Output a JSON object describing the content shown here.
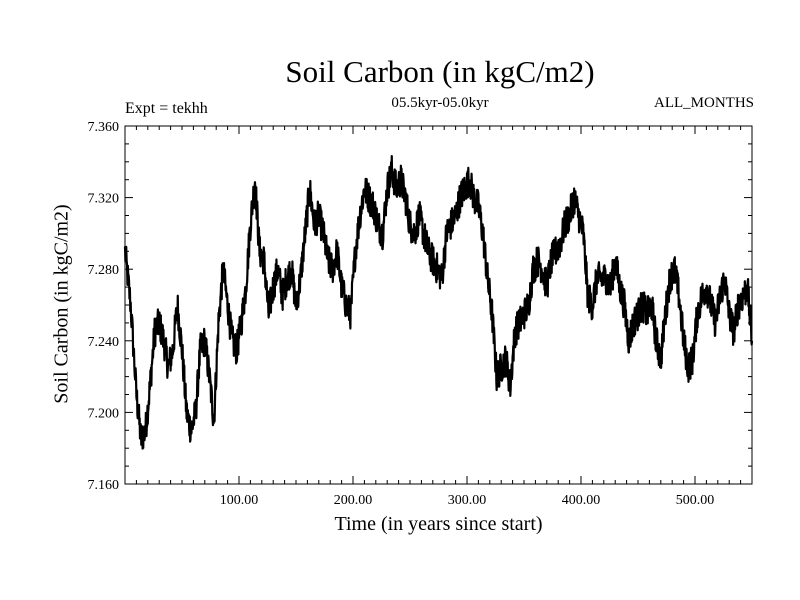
{
  "chart_data": {
    "type": "line",
    "title": "Soil Carbon (in kgC/m2)",
    "subtitle": "05.5kyr-05.0kyr",
    "annotation_left": "Expt = tekhh",
    "annotation_right": "ALL_MONTHS",
    "xlabel": "Time (in years since start)",
    "ylabel": "Soil Carbon (in kgC/m2)",
    "xlim": [
      0,
      550
    ],
    "ylim": [
      7.16,
      7.36
    ],
    "xticks": [
      100,
      200,
      300,
      400,
      500
    ],
    "xtick_labels": [
      "100.00",
      "200.00",
      "300.00",
      "400.00",
      "500.00"
    ],
    "yticks": [
      7.16,
      7.2,
      7.24,
      7.28,
      7.32,
      7.36
    ],
    "ytick_labels": [
      "7.160",
      "7.200",
      "7.240",
      "7.280",
      "7.320",
      "7.360"
    ],
    "series": [
      {
        "name": "Soil Carbon",
        "color": "#000000",
        "x": [
          0,
          5,
          10,
          14,
          18,
          22,
          26,
          30,
          34,
          38,
          42,
          46,
          50,
          54,
          58,
          62,
          66,
          70,
          74,
          78,
          82,
          86,
          90,
          94,
          98,
          102,
          106,
          110,
          114,
          118,
          122,
          126,
          130,
          134,
          138,
          142,
          146,
          150,
          154,
          158,
          162,
          166,
          170,
          174,
          178,
          182,
          186,
          190,
          194,
          198,
          202,
          206,
          210,
          214,
          218,
          222,
          226,
          230,
          234,
          238,
          242,
          246,
          250,
          254,
          258,
          262,
          266,
          270,
          274,
          278,
          282,
          286,
          290,
          294,
          298,
          302,
          306,
          310,
          314,
          318,
          322,
          326,
          330,
          334,
          338,
          342,
          346,
          350,
          354,
          358,
          362,
          366,
          370,
          374,
          378,
          382,
          386,
          390,
          394,
          398,
          402,
          406,
          410,
          414,
          418,
          422,
          426,
          430,
          434,
          438,
          442,
          446,
          450,
          454,
          458,
          462,
          466,
          470,
          474,
          478,
          482,
          486,
          490,
          494,
          498,
          502,
          506,
          510,
          514,
          518,
          522,
          526,
          530,
          534,
          538,
          542,
          546,
          550
        ],
        "values": [
          7.29,
          7.26,
          7.21,
          7.185,
          7.19,
          7.215,
          7.245,
          7.25,
          7.24,
          7.225,
          7.235,
          7.26,
          7.235,
          7.2,
          7.19,
          7.2,
          7.235,
          7.24,
          7.22,
          7.195,
          7.25,
          7.28,
          7.26,
          7.24,
          7.235,
          7.25,
          7.27,
          7.305,
          7.33,
          7.29,
          7.285,
          7.255,
          7.27,
          7.28,
          7.265,
          7.275,
          7.28,
          7.26,
          7.275,
          7.3,
          7.325,
          7.305,
          7.31,
          7.3,
          7.285,
          7.28,
          7.29,
          7.27,
          7.26,
          7.255,
          7.29,
          7.31,
          7.325,
          7.32,
          7.315,
          7.305,
          7.3,
          7.325,
          7.335,
          7.325,
          7.33,
          7.32,
          7.305,
          7.3,
          7.31,
          7.3,
          7.29,
          7.285,
          7.28,
          7.275,
          7.3,
          7.305,
          7.31,
          7.32,
          7.325,
          7.33,
          7.32,
          7.315,
          7.3,
          7.275,
          7.255,
          7.22,
          7.225,
          7.23,
          7.215,
          7.245,
          7.25,
          7.255,
          7.26,
          7.28,
          7.285,
          7.28,
          7.27,
          7.285,
          7.29,
          7.295,
          7.305,
          7.31,
          7.32,
          7.31,
          7.3,
          7.265,
          7.26,
          7.275,
          7.275,
          7.275,
          7.27,
          7.285,
          7.27,
          7.26,
          7.24,
          7.25,
          7.255,
          7.26,
          7.255,
          7.26,
          7.24,
          7.23,
          7.255,
          7.275,
          7.28,
          7.265,
          7.24,
          7.225,
          7.23,
          7.255,
          7.265,
          7.27,
          7.26,
          7.25,
          7.265,
          7.275,
          7.255,
          7.245,
          7.26,
          7.265,
          7.27,
          7.24
        ]
      }
    ]
  }
}
